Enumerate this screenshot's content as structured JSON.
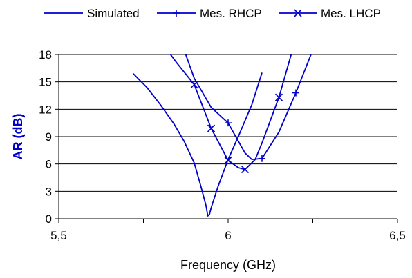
{
  "chart_data": {
    "type": "line",
    "xlabel": "Frequency (GHz)",
    "ylabel": "AR (dB)",
    "xlim": [
      5.5,
      6.5
    ],
    "ylim": [
      0,
      18
    ],
    "x_ticks": [
      5.5,
      6,
      6.5
    ],
    "x_tick_labels": [
      "5,5",
      "6",
      "6,5"
    ],
    "y_ticks": [
      0,
      3,
      6,
      9,
      12,
      15,
      18
    ],
    "y_tick_labels": [
      "0",
      "3",
      "6",
      "9",
      "12",
      "15",
      "18"
    ],
    "grid": "horizontal",
    "legend_placement": "top",
    "colors": {
      "series": "#0000cc",
      "axis": "#000000",
      "grid": "#000000"
    },
    "series": [
      {
        "name": "Simulated",
        "marker": "none",
        "points": [
          [
            5.72,
            15.9
          ],
          [
            5.76,
            14.4
          ],
          [
            5.8,
            12.5
          ],
          [
            5.84,
            10.4
          ],
          [
            5.87,
            8.5
          ],
          [
            5.9,
            6.1
          ],
          [
            5.92,
            3.5
          ],
          [
            5.935,
            1.4
          ],
          [
            5.94,
            0.3
          ],
          [
            5.945,
            0.5
          ],
          [
            5.95,
            1.2
          ],
          [
            5.97,
            3.5
          ],
          [
            6.0,
            6.5
          ],
          [
            6.03,
            9.0
          ],
          [
            6.07,
            12.5
          ],
          [
            6.1,
            16.0
          ]
        ]
      },
      {
        "name": "Mes. RHCP",
        "marker": "plus",
        "points": [
          [
            5.87,
            18.5
          ],
          [
            5.9,
            15.4
          ],
          [
            5.95,
            12.2
          ],
          [
            6.0,
            10.5
          ],
          [
            6.03,
            8.5
          ],
          [
            6.05,
            7.2
          ],
          [
            6.07,
            6.5
          ],
          [
            6.1,
            6.6
          ],
          [
            6.15,
            9.5
          ],
          [
            6.2,
            13.8
          ],
          [
            6.25,
            18.5
          ]
        ],
        "marker_points": [
          [
            6.0,
            10.5
          ],
          [
            6.1,
            6.6
          ],
          [
            6.2,
            13.8
          ]
        ]
      },
      {
        "name": "Mes. LHCP",
        "marker": "x",
        "points": [
          [
            5.82,
            18.5
          ],
          [
            5.85,
            17.0
          ],
          [
            5.9,
            14.7
          ],
          [
            5.95,
            9.9
          ],
          [
            6.0,
            6.4
          ],
          [
            6.03,
            5.6
          ],
          [
            6.05,
            5.4
          ],
          [
            6.08,
            6.5
          ],
          [
            6.1,
            8.3
          ],
          [
            6.15,
            13.3
          ],
          [
            6.19,
            18.5
          ]
        ],
        "marker_points": [
          [
            5.9,
            14.7
          ],
          [
            5.95,
            9.9
          ],
          [
            6.0,
            6.4
          ],
          [
            6.05,
            5.4
          ],
          [
            6.15,
            13.3
          ]
        ]
      }
    ]
  }
}
